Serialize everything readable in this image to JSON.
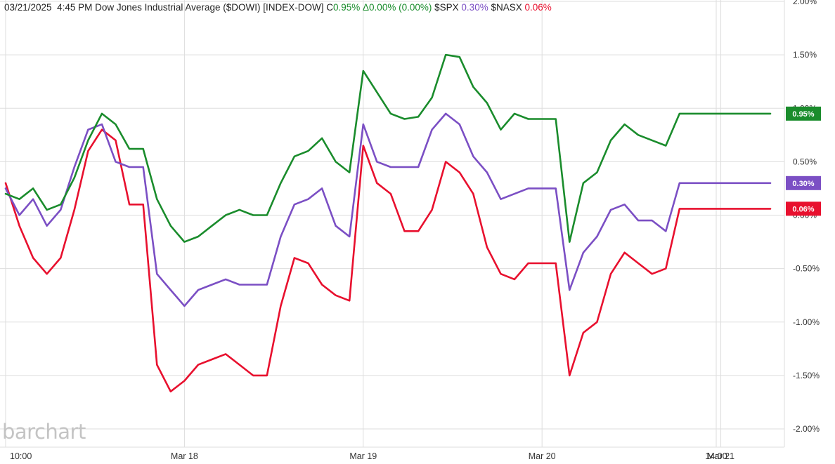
{
  "header": {
    "datetime": "03/21/2025  4:45 PM",
    "symbol_name": "Dow Jones Industrial Average ($DOWI) [INDEX-DOW]",
    "change_prefix": "C",
    "change_value": "0.95%",
    "delta_text": "Δ0.00% (0.00%)",
    "spx_label": "$SPX",
    "spx_value": "0.30%",
    "nasx_label": "$NASX",
    "nasx_value": "0.06%"
  },
  "watermark": "barchart",
  "colors": {
    "dowi": "#1a8c2c",
    "spx": "#7b4fc4",
    "nasx": "#e8102e",
    "grid": "#dddddd",
    "axis_text": "#333333",
    "green_text": "#1a8c2c",
    "purple_text": "#7b4fc4",
    "red_text": "#e8102e"
  },
  "chart_data": {
    "type": "line",
    "ylabel_unit": "%",
    "ylim": [
      -2.0,
      2.0
    ],
    "y_ticks": [
      "2.00%",
      "1.50%",
      "1.00%",
      "0.50%",
      "0.00%",
      "-0.50%",
      "-1.00%",
      "-1.50%",
      "-2.00%"
    ],
    "y_tick_values": [
      2.0,
      1.5,
      1.0,
      0.5,
      0.0,
      -0.5,
      -1.0,
      -1.5,
      -2.0
    ],
    "x_range": [
      0,
      27.8
    ],
    "x_ticks": [
      "10:00",
      "Mar 18",
      "Mar 19",
      "Mar 20",
      "Mar 21",
      "14:00"
    ],
    "x_tick_values": [
      0,
      6.5,
      13,
      19.5,
      26,
      29
    ],
    "grid": true,
    "badges": [
      {
        "series": "$DOWI",
        "text": "0.95%",
        "value": 0.95
      },
      {
        "series": "$SPX",
        "text": "0.30%",
        "value": 0.3
      },
      {
        "series": "$NASX",
        "text": "0.06%",
        "value": 0.06
      }
    ],
    "series": [
      {
        "name": "$DOWI",
        "x": [
          0,
          0.5,
          1,
          1.5,
          2,
          2.5,
          3,
          3.5,
          4,
          4.5,
          5,
          5.5,
          6,
          6.5,
          7,
          7.5,
          8,
          8.5,
          9,
          9.5,
          10,
          10.5,
          11,
          11.5,
          12,
          12.5,
          13,
          13.5,
          14,
          14.5,
          15,
          15.5,
          16,
          16.5,
          17,
          17.5,
          18,
          18.5,
          19,
          19.5,
          20,
          20.5,
          21,
          21.5,
          22,
          22.5,
          23,
          23.5,
          24,
          24.5,
          25,
          25.5,
          26,
          26.5,
          27,
          27.5,
          27.8
        ],
        "values": [
          0.2,
          0.15,
          0.25,
          0.05,
          0.1,
          0.35,
          0.7,
          0.95,
          0.85,
          0.62,
          0.62,
          0.15,
          -0.1,
          -0.25,
          -0.2,
          -0.1,
          0.0,
          0.05,
          0.0,
          0.0,
          0.3,
          0.55,
          0.6,
          0.72,
          0.5,
          0.4,
          1.35,
          1.15,
          0.95,
          0.9,
          0.92,
          1.1,
          1.5,
          1.48,
          1.2,
          1.05,
          0.8,
          0.95,
          0.9,
          0.9,
          0.9,
          -0.25,
          0.3,
          0.4,
          0.7,
          0.85,
          0.75,
          0.7,
          0.65,
          0.95,
          0.95,
          0.95,
          0.95,
          0.95,
          0.95,
          0.95,
          0.95
        ]
      },
      {
        "name": "$SPX",
        "x": [
          0,
          0.5,
          1,
          1.5,
          2,
          2.5,
          3,
          3.5,
          4,
          4.5,
          5,
          5.5,
          6,
          6.5,
          7,
          7.5,
          8,
          8.5,
          9,
          9.5,
          10,
          10.5,
          11,
          11.5,
          12,
          12.5,
          13,
          13.5,
          14,
          14.5,
          15,
          15.5,
          16,
          16.5,
          17,
          17.5,
          18,
          18.5,
          19,
          19.5,
          20,
          20.5,
          21,
          21.5,
          22,
          22.5,
          23,
          23.5,
          24,
          24.5,
          25,
          25.5,
          26,
          26.5,
          27,
          27.5,
          27.8
        ],
        "values": [
          0.25,
          0.0,
          0.15,
          -0.1,
          0.05,
          0.45,
          0.8,
          0.85,
          0.5,
          0.45,
          0.45,
          -0.55,
          -0.7,
          -0.85,
          -0.7,
          -0.65,
          -0.6,
          -0.65,
          -0.65,
          -0.65,
          -0.2,
          0.1,
          0.15,
          0.25,
          -0.1,
          -0.2,
          0.85,
          0.5,
          0.45,
          0.45,
          0.45,
          0.8,
          0.95,
          0.85,
          0.55,
          0.4,
          0.15,
          0.2,
          0.25,
          0.25,
          0.25,
          -0.7,
          -0.35,
          -0.2,
          0.05,
          0.1,
          -0.05,
          -0.05,
          -0.15,
          0.3,
          0.3,
          0.3,
          0.3,
          0.3,
          0.3,
          0.3,
          0.3
        ]
      },
      {
        "name": "$NASX",
        "x": [
          0,
          0.5,
          1,
          1.5,
          2,
          2.5,
          3,
          3.5,
          4,
          4.5,
          5,
          5.5,
          6,
          6.5,
          7,
          7.5,
          8,
          8.5,
          9,
          9.5,
          10,
          10.5,
          11,
          11.5,
          12,
          12.5,
          13,
          13.5,
          14,
          14.5,
          15,
          15.5,
          16,
          16.5,
          17,
          17.5,
          18,
          18.5,
          19,
          19.5,
          20,
          20.5,
          21,
          21.5,
          22,
          22.5,
          23,
          23.5,
          24,
          24.5,
          25,
          25.5,
          26,
          26.5,
          27,
          27.5,
          27.8
        ],
        "values": [
          0.3,
          -0.1,
          -0.4,
          -0.55,
          -0.4,
          0.05,
          0.6,
          0.8,
          0.7,
          0.1,
          0.1,
          -1.4,
          -1.65,
          -1.55,
          -1.4,
          -1.35,
          -1.3,
          -1.4,
          -1.5,
          -1.5,
          -0.85,
          -0.4,
          -0.45,
          -0.65,
          -0.75,
          -0.8,
          0.65,
          0.3,
          0.2,
          -0.15,
          -0.15,
          0.05,
          0.5,
          0.4,
          0.2,
          -0.3,
          -0.55,
          -0.6,
          -0.45,
          -0.45,
          -0.45,
          -1.5,
          -1.1,
          -1.0,
          -0.55,
          -0.35,
          -0.45,
          -0.55,
          -0.5,
          0.06,
          0.06,
          0.06,
          0.06,
          0.06,
          0.06,
          0.06,
          0.06
        ]
      }
    ]
  }
}
